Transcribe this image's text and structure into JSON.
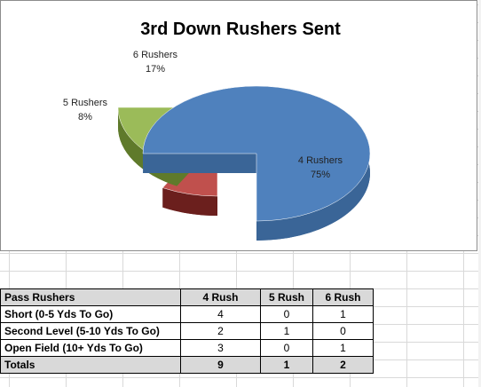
{
  "chart_data": {
    "type": "pie",
    "title": "3rd Down Rushers Sent",
    "slices": [
      {
        "name": "4 Rushers",
        "value": 75,
        "label": "75%",
        "color": "#4f81bd",
        "side": "#3a6597",
        "exploded": false
      },
      {
        "name": "5 Rushers",
        "value": 8,
        "label": "8%",
        "color": "#c0504d",
        "side": "#6b1f1d",
        "exploded": true
      },
      {
        "name": "6 Rushers",
        "value": 17,
        "label": "17%",
        "color": "#9bbb59",
        "side": "#5f7a2b",
        "exploded": true
      }
    ],
    "legend": "none",
    "style": "3d"
  },
  "table": {
    "headers": [
      "Pass Rushers",
      "4 Rush",
      "5 Rush",
      "6 Rush"
    ],
    "rows": [
      {
        "label": "Short (0-5 Yds To Go)",
        "values": [
          "4",
          "0",
          "1"
        ]
      },
      {
        "label": "Second Level (5-10 Yds To Go)",
        "values": [
          "2",
          "1",
          "0"
        ]
      },
      {
        "label": "Open Field (10+ Yds To Go)",
        "values": [
          "3",
          "0",
          "1"
        ]
      }
    ],
    "totals": {
      "label": "Totals",
      "values": [
        "9",
        "1",
        "2"
      ]
    }
  }
}
